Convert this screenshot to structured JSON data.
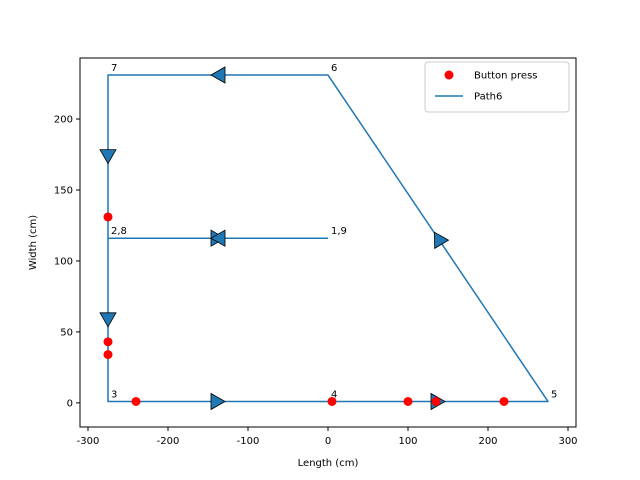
{
  "chart_data": {
    "type": "line",
    "xlabel": "Length (cm)",
    "ylabel": "Width (cm)",
    "xlim": [
      -310,
      310
    ],
    "ylim": [
      -17,
      243
    ],
    "xticks": [
      -300,
      -200,
      -100,
      0,
      100,
      200,
      300
    ],
    "yticks": [
      0,
      50,
      100,
      150,
      200
    ],
    "grid": false,
    "legend_position": "top-right",
    "colors": {
      "path": "#1f77b4",
      "marker": "#ff0000",
      "axis": "#000000"
    },
    "series": [
      {
        "name": "Path6",
        "kind": "line",
        "x": [
          0,
          -275,
          -275,
          -275,
          0,
          275,
          0,
          -275,
          -275,
          -275,
          0
        ],
        "y": [
          116,
          116,
          116,
          1,
          1,
          1,
          231,
          231,
          116,
          116,
          116
        ]
      },
      {
        "name": "Button press",
        "kind": "scatter",
        "x": [
          -275,
          -275,
          -275,
          -240,
          5,
          100,
          135,
          220
        ],
        "y": [
          131,
          43,
          34,
          1,
          1,
          1,
          1,
          1
        ]
      }
    ],
    "arrows": [
      {
        "x": -137.5,
        "y": 116,
        "direction": "right"
      },
      {
        "x": -137.5,
        "y": 116,
        "direction": "left"
      },
      {
        "x": -275,
        "y": 58.5,
        "direction": "down"
      },
      {
        "x": -137.5,
        "y": 1,
        "direction": "right"
      },
      {
        "x": 137.5,
        "y": 1,
        "direction": "right"
      },
      {
        "x": 137.5,
        "y": 116,
        "direction": "up-left"
      },
      {
        "x": -137.5,
        "y": 231,
        "direction": "left"
      },
      {
        "x": -275,
        "y": 173.5,
        "direction": "down"
      }
    ],
    "point_labels": [
      {
        "text": "1,9",
        "x": 0,
        "y": 116
      },
      {
        "text": "2,8",
        "x": -275,
        "y": 116
      },
      {
        "text": "3",
        "x": -275,
        "y": 1
      },
      {
        "text": "4",
        "x": 0,
        "y": 1
      },
      {
        "text": "5",
        "x": 275,
        "y": 1
      },
      {
        "text": "6",
        "x": 0,
        "y": 231
      },
      {
        "text": "7",
        "x": -275,
        "y": 231
      }
    ],
    "legend": [
      {
        "label": "Button press",
        "kind": "marker"
      },
      {
        "label": "Path6",
        "kind": "line"
      }
    ]
  }
}
